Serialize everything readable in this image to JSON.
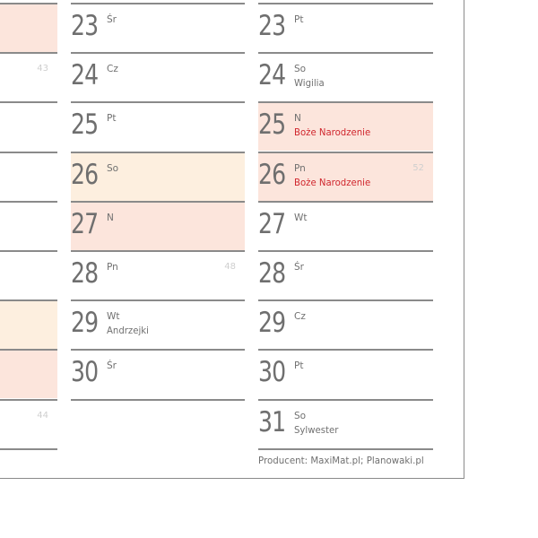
{
  "left_column": {
    "rows": [
      {
        "type": "sun",
        "week": ""
      },
      {
        "type": "",
        "week": "43"
      },
      {
        "type": "",
        "week": ""
      },
      {
        "type": "",
        "week": ""
      },
      {
        "type": "",
        "week": ""
      },
      {
        "type": "",
        "week": ""
      },
      {
        "type": "sat",
        "week": ""
      },
      {
        "type": "sun",
        "week": ""
      },
      {
        "type": "",
        "week": "44"
      }
    ]
  },
  "middle_column": {
    "rows": [
      {
        "day": "23",
        "weekday": "Śr",
        "name": "",
        "type": "",
        "week": ""
      },
      {
        "day": "24",
        "weekday": "Cz",
        "name": "",
        "type": "",
        "week": ""
      },
      {
        "day": "25",
        "weekday": "Pt",
        "name": "",
        "type": "",
        "week": ""
      },
      {
        "day": "26",
        "weekday": "So",
        "name": "",
        "type": "sat",
        "week": ""
      },
      {
        "day": "27",
        "weekday": "N",
        "name": "",
        "type": "sun",
        "week": ""
      },
      {
        "day": "28",
        "weekday": "Pn",
        "name": "",
        "type": "",
        "week": "48"
      },
      {
        "day": "29",
        "weekday": "Wt",
        "name": "Andrzejki",
        "type": "",
        "week": ""
      },
      {
        "day": "30",
        "weekday": "Śr",
        "name": "",
        "type": "",
        "week": ""
      }
    ]
  },
  "right_column": {
    "rows": [
      {
        "day": "23",
        "weekday": "Pt",
        "name": "",
        "type": "",
        "week": ""
      },
      {
        "day": "24",
        "weekday": "So",
        "name": "Wigilia",
        "type": "",
        "week": ""
      },
      {
        "day": "25",
        "weekday": "N",
        "name": "Boże Narodzenie",
        "type": "hol",
        "week": ""
      },
      {
        "day": "26",
        "weekday": "Pn",
        "name": "Boże Narodzenie",
        "type": "hol",
        "week": "52"
      },
      {
        "day": "27",
        "weekday": "Wt",
        "name": "",
        "type": "",
        "week": ""
      },
      {
        "day": "28",
        "weekday": "Śr",
        "name": "",
        "type": "",
        "week": ""
      },
      {
        "day": "29",
        "weekday": "Cz",
        "name": "",
        "type": "",
        "week": ""
      },
      {
        "day": "30",
        "weekday": "Pt",
        "name": "",
        "type": "",
        "week": ""
      },
      {
        "day": "31",
        "weekday": "So",
        "name": "Sylwester",
        "type": "",
        "week": ""
      }
    ]
  },
  "footer": {
    "text": "Producent: MaxiMat.pl;  Planowaki.pl"
  },
  "colors": {
    "sunday_fill": "#fce5dc",
    "saturday_fill": "#fdefdf",
    "holiday_text": "#d0262d",
    "text": "#707070"
  }
}
